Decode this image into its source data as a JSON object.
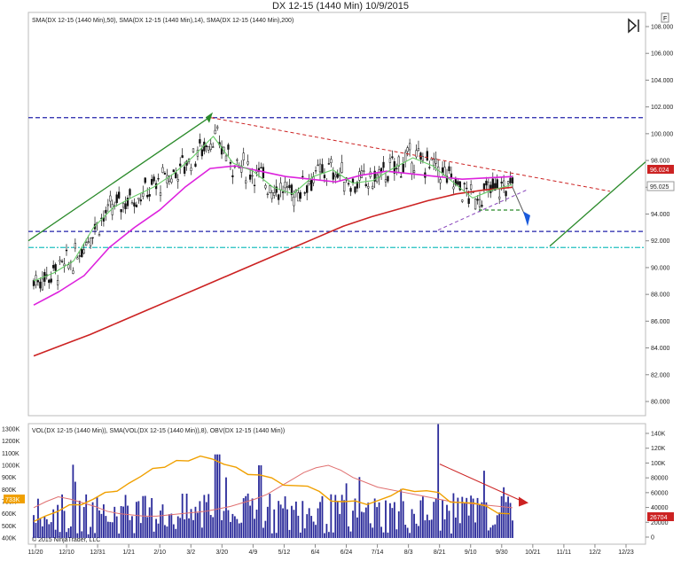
{
  "window": {
    "title": "DX 12-15 (1440 Min)  10/9/2015"
  },
  "price_panel": {
    "indicator_label": "SMA(DX 12-15 (1440 Min),50), SMA(DX 12-15 (1440 Min),14), SMA(DX 12-15 (1440 Min),200)"
  },
  "volume_panel": {
    "indicator_label": "VOL(DX 12-15 (1440 Min)), SMA(VOL(DX 12-15 (1440 Min)),8), OBV(DX 12-15 (1440 Min))"
  },
  "copyright": "© 2015 NinjaTrader, LLC",
  "icons": [
    "play-pause-icon",
    "f-badge-icon"
  ],
  "colors": {
    "sma50": "#dd22dd",
    "sma14": "#66cc66",
    "sma200": "#cc2222",
    "obv": "#f0a000",
    "volume": "#2a2a9a",
    "resistance": "#2222aa",
    "trend_up": "#2a8a2a",
    "support_cyan": "#20c0c0",
    "triangle": "#cc2222",
    "target_arrow": "#1a5adc",
    "last_price_badge": "#cc2222",
    "obv_badge": "#f0a000"
  },
  "chart_data": [
    {
      "type": "candlestick",
      "title": "DX 12-15 (1440 Min)  10/9/2015",
      "x_ticks": [
        "11/20",
        "12/10",
        "12/31",
        "1/21",
        "2/10",
        "3/2",
        "3/20",
        "4/9",
        "5/12",
        "6/4",
        "6/24",
        "7/14",
        "8/3",
        "8/21",
        "9/10",
        "9/30",
        "10/21",
        "11/11",
        "12/2",
        "12/23"
      ],
      "y_ticks": [
        "80.000",
        "82.000",
        "84.000",
        "86.000",
        "88.000",
        "90.000",
        "92.000",
        "94.000",
        "96.000",
        "98.000",
        "100.000",
        "102.000",
        "104.000",
        "106.000",
        "108.000"
      ],
      "ylim": [
        79,
        109
      ],
      "last_price_labels": {
        "sma": "96.024",
        "last": "95.025"
      },
      "horizontal_levels": [
        {
          "name": "resistance",
          "value": 101.2,
          "style": "dashed"
        },
        {
          "name": "support",
          "value": 92.7,
          "style": "dashed"
        },
        {
          "name": "support-2",
          "value": 91.5,
          "style": "dash-dot"
        }
      ],
      "series": [
        {
          "name": "SMA 14",
          "values": [
            89,
            89.6,
            90.5,
            93,
            94.5,
            95.3,
            96,
            97,
            98.3,
            99.8,
            97.8,
            97.2,
            96,
            95.5,
            96.8,
            97.3,
            96.3,
            96.5,
            97.4,
            98.2,
            97.6,
            96.4,
            95.2,
            95.8,
            96.2
          ]
        },
        {
          "name": "SMA 50",
          "values": [
            87.2,
            88.2,
            89.4,
            91.5,
            93,
            94.3,
            96,
            97.4,
            97.6,
            97.2,
            96.8,
            96.6,
            96.4,
            96.9,
            97.2,
            97.0,
            96.8,
            96.6,
            96.7,
            96.8
          ]
        },
        {
          "name": "SMA 200",
          "values": [
            83.4,
            84.2,
            85,
            85.9,
            86.8,
            87.7,
            88.6,
            89.5,
            90.4,
            91.3,
            92.2,
            93.1,
            93.8,
            94.4,
            95,
            95.5,
            95.8,
            96.0
          ]
        }
      ]
    },
    {
      "type": "bar",
      "title": "VOL(DX 12-15 (1440 Min)), SMA(VOL(DX 12-15 (1440 Min)),8), OBV(DX 12-15 (1440 Min))",
      "y_ticks_left": [
        "400K",
        "500K",
        "600K",
        "700K",
        "800K",
        "900K",
        "1000K",
        "1100K",
        "1200K",
        "1300K"
      ],
      "y_ticks_right": [
        "0",
        "20000",
        "40000",
        "60000",
        "80000",
        "100K",
        "120K",
        "140K"
      ],
      "labels": {
        "volume_last": "733K",
        "obv_last": "26704"
      },
      "obv": [
        560,
        590,
        610,
        650,
        690,
        720,
        760,
        810,
        860,
        900,
        950,
        1000,
        1040,
        1020,
        1100,
        1060,
        1000,
        960,
        940,
        920,
        880,
        860,
        840,
        820,
        760,
        720,
        700,
        690,
        700,
        720,
        740,
        780,
        800,
        790,
        760,
        720,
        700,
        680,
        640,
        620,
        600
      ],
      "sma_vol": [
        650,
        700,
        740,
        720,
        690,
        660,
        620,
        600,
        590,
        580,
        580,
        590,
        600,
        610,
        620,
        640,
        660,
        690,
        720,
        760,
        820,
        880,
        940,
        980,
        1000,
        960,
        900,
        860,
        820,
        800,
        780,
        760,
        740,
        720,
        700,
        690,
        680,
        670,
        660,
        650
      ]
    }
  ]
}
